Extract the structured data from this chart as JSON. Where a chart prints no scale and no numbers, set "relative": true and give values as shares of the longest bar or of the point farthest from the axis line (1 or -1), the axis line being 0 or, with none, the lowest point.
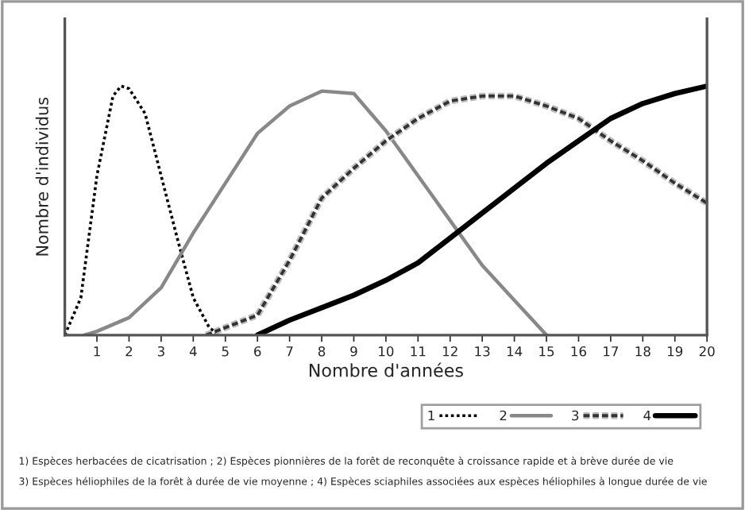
{
  "chart_data": {
    "type": "line",
    "relative": true,
    "xlabel": "Nombre d'années",
    "ylabel": "Nombre d'individus",
    "xlim": [
      0,
      20
    ],
    "xticks": [
      1,
      2,
      3,
      4,
      5,
      6,
      7,
      8,
      9,
      10,
      11,
      12,
      13,
      14,
      15,
      16,
      17,
      18,
      19,
      20
    ],
    "tick_labels": "x",
    "grid": false,
    "legend": "bottom right",
    "marker": "none",
    "series": [
      {
        "name": "1",
        "color": "#000000",
        "line_style": "dotted",
        "x": [
          0,
          0.5,
          1,
          1.5,
          1.75,
          2,
          2.5,
          3,
          3.5,
          4,
          4.5,
          4.8
        ],
        "values": [
          0,
          0.15,
          0.64,
          0.96,
          1.0,
          0.99,
          0.89,
          0.64,
          0.39,
          0.15,
          0.03,
          0
        ]
      },
      {
        "name": "2",
        "color": "#888888",
        "line_style": "solid",
        "x": [
          0.6,
          1,
          2,
          3,
          4,
          5,
          6,
          7,
          8,
          9,
          10,
          11,
          12,
          13,
          14,
          15
        ],
        "values": [
          0,
          0.015,
          0.07,
          0.19,
          0.41,
          0.61,
          0.81,
          0.92,
          0.98,
          0.97,
          0.82,
          0.64,
          0.46,
          0.28,
          0.14,
          0
        ]
      },
      {
        "name": "3",
        "color": "#333333",
        "line_style": "dashed",
        "x": [
          4.4,
          5,
          6,
          7,
          8,
          9,
          10,
          11,
          12,
          13,
          14,
          15,
          16,
          17,
          18,
          19,
          20
        ],
        "values": [
          0,
          0.03,
          0.08,
          0.3,
          0.55,
          0.67,
          0.78,
          0.87,
          0.94,
          0.96,
          0.96,
          0.92,
          0.87,
          0.78,
          0.7,
          0.61,
          0.53
        ]
      },
      {
        "name": "4",
        "color": "#000000",
        "line_style": "solid",
        "x": [
          6,
          7,
          8,
          9,
          10,
          11,
          12,
          13,
          14,
          15,
          16,
          17,
          18,
          19,
          20
        ],
        "values": [
          0,
          0.06,
          0.11,
          0.16,
          0.22,
          0.29,
          0.39,
          0.49,
          0.59,
          0.69,
          0.78,
          0.87,
          0.93,
          0.97,
          1.0
        ]
      }
    ],
    "annotations": [
      "1) Espèces herbacées de cicatrisation ; 2) Espèces pionnières de la forêt de reconquête à croissance rapide et à brève durée de vie",
      "3) Espèces héliophiles de la forêt à durée de vie moyenne ; 4) Espèces sciaphiles associées aux espèces héliophiles à longue durée de vie"
    ]
  }
}
